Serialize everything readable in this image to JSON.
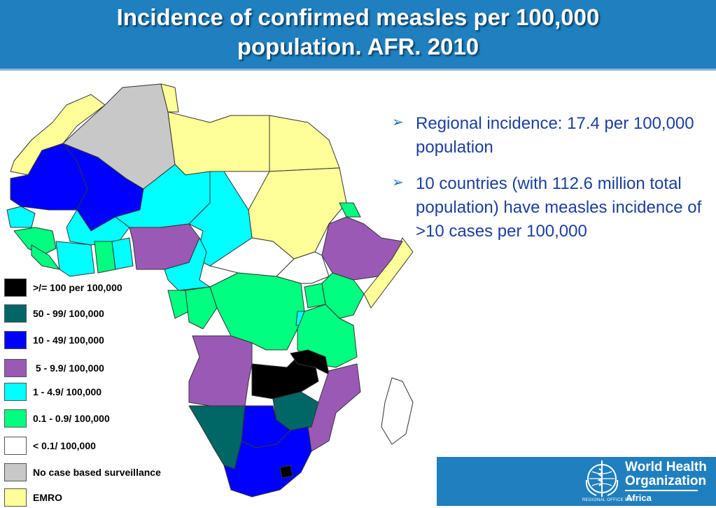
{
  "header": {
    "title": "Incidence of confirmed measles per 100,000\npopulation. AFR. 2010"
  },
  "bullets": [
    {
      "icon": "arrow-bullet-icon",
      "text": "Regional incidence: 17.4 per 100,000 population"
    },
    {
      "icon": "arrow-bullet-icon",
      "text": "10 countries (with 112.6 million total population) have measles incidence of >10 cases per 100,000"
    }
  ],
  "legend": [
    {
      "label": ">/= 100 per 100,000",
      "color": "#000000"
    },
    {
      "label": "50 - 99/ 100,000",
      "color": "#006666"
    },
    {
      "label": "10 - 49/ 100,000",
      "color": "#0000ff"
    },
    {
      "label": " 5 - 9.9/ 100,000",
      "color": "#9b59b6"
    },
    {
      "label": "1 - 4.9/ 100,000",
      "color": "#00ffff"
    },
    {
      "label": "0.1 - 0.9/ 100,000",
      "color": "#00ff80"
    },
    {
      "label": "< 0.1/ 100,000",
      "color": "#ffffff"
    },
    {
      "label": "No case based surveillance",
      "color": "#c8c8c8"
    },
    {
      "label": "EMRO",
      "color": "#ffff99"
    }
  ],
  "logo": {
    "org_name": "World Health\nOrganization",
    "regional_label": "REGIONAL OFFICE FOR",
    "region_name": "Africa"
  },
  "colors": {
    "header_bg": "#1f7fbf",
    "bullet_text": "#1a3fa0",
    "black": "#000000",
    "teal": "#006666",
    "blue": "#0000ff",
    "purple": "#9b59b6",
    "cyan": "#00ffff",
    "green": "#00ff80",
    "white": "#ffffff",
    "grey": "#c8c8c8",
    "emro": "#ffff99"
  }
}
